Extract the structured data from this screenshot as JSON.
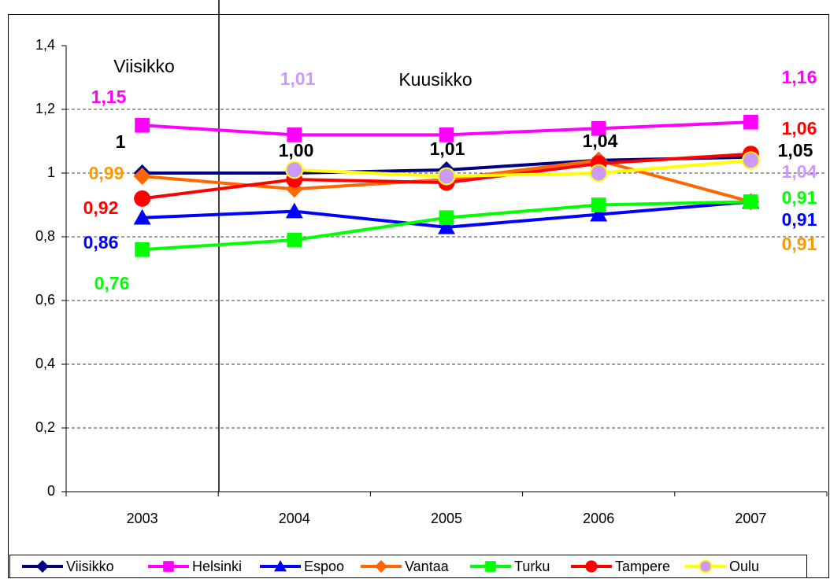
{
  "chart_data": {
    "type": "line",
    "annotations": [
      "Viisikko",
      "Kuusikko"
    ],
    "categories": [
      "2003",
      "2004",
      "2005",
      "2006",
      "2007"
    ],
    "ylim": [
      0,
      1.4
    ],
    "yticks": [
      0,
      {
        "value": 0.2,
        "label": "0,2"
      },
      {
        "value": 0.4,
        "label": "0,4"
      },
      {
        "value": 0.6,
        "label": "0,6"
      },
      {
        "value": 0.8,
        "label": "0,8"
      },
      1,
      {
        "value": 1.2,
        "label": "1,2"
      },
      {
        "value": 1.4,
        "label": "1,4"
      }
    ],
    "grid": true,
    "legend": "bottom",
    "series": [
      {
        "name": "Viisikko",
        "color": "#000080",
        "marker": "diamond",
        "marker_color": "#000080",
        "label_color": "#000000",
        "values": [
          1,
          1.0,
          1.01,
          1.04,
          1.05
        ],
        "value_labels": [
          "1",
          "1,00",
          "1,01",
          "1,04",
          "1,05"
        ]
      },
      {
        "name": "Helsinki",
        "color": "#ff00ff",
        "marker": "square",
        "marker_color": "#ff00ff",
        "label_color": "#ff00ff",
        "values": [
          1.15,
          1.12,
          1.12,
          1.14,
          1.16
        ],
        "value_labels": [
          "1,15",
          null,
          null,
          null,
          "1,16"
        ]
      },
      {
        "name": "Espoo",
        "color": "#0000ff",
        "marker": "triangle",
        "marker_color": "#0000ff",
        "label_color": "#0000ff",
        "values": [
          0.86,
          0.88,
          0.83,
          0.87,
          0.91
        ],
        "value_labels": [
          "0,86",
          null,
          null,
          null,
          "0,91"
        ]
      },
      {
        "name": "Vantaa",
        "color": "#ff6600",
        "marker": "diamond",
        "marker_color": "#ff6600",
        "label_color": "#ff9900",
        "values": [
          0.99,
          0.95,
          0.98,
          1.04,
          0.91
        ],
        "value_labels": [
          "0,99",
          null,
          null,
          null,
          "0,91"
        ]
      },
      {
        "name": "Turku",
        "color": "#00ff00",
        "marker": "square",
        "marker_color": "#00ff00",
        "label_color": "#00ff00",
        "values": [
          0.76,
          0.79,
          0.86,
          0.9,
          0.91
        ],
        "value_labels": [
          "0,76",
          null,
          null,
          null,
          "0,91"
        ]
      },
      {
        "name": "Tampere",
        "color": "#ff0000",
        "marker": "circle",
        "marker_color": "#ff0000",
        "label_color": "#ff0000",
        "values": [
          0.92,
          0.98,
          0.97,
          1.03,
          1.06
        ],
        "value_labels": [
          "0,92",
          null,
          null,
          null,
          "1,06"
        ]
      },
      {
        "name": "Oulu",
        "color": "#ffff00",
        "marker": "circle",
        "marker_color": "#cc99ff",
        "label_color": "#cc99ff",
        "values": [
          null,
          1.01,
          0.99,
          1.0,
          1.04
        ],
        "value_labels": [
          null,
          "1,01",
          null,
          null,
          "1,04"
        ]
      }
    ]
  }
}
